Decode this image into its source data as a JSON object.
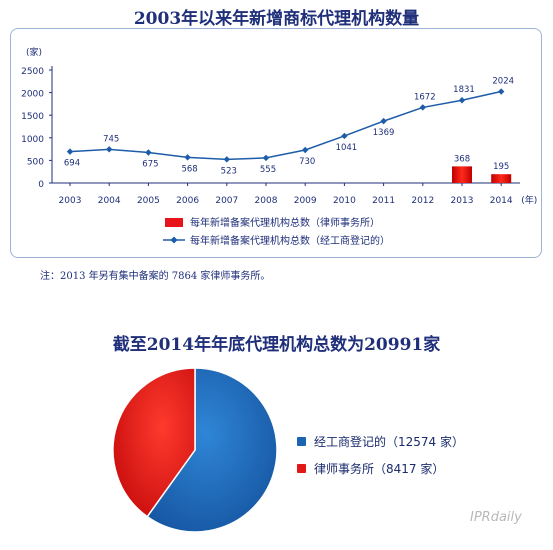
{
  "chart_data": [
    {
      "type": "bar+line",
      "title": "2003年以来年新增商标代理机构数量",
      "ylabel": "(家)",
      "xlabel": "(年)",
      "ylim": [
        0,
        2500
      ],
      "yticks": [
        "0",
        "500",
        "1000",
        "1500",
        "2000",
        "2500"
      ],
      "categories": [
        "2003",
        "2004",
        "2005",
        "2006",
        "2007",
        "2008",
        "2009",
        "2010",
        "2011",
        "2012",
        "2013",
        "2014"
      ],
      "series": [
        {
          "name": "每年新增备案代理机构总数（律师事务所）",
          "type": "bar",
          "color": "#e8141b",
          "values": [
            null,
            null,
            null,
            null,
            null,
            null,
            null,
            null,
            null,
            null,
            368,
            195
          ],
          "labels": [
            "",
            "",
            "",
            "",
            "",
            "",
            "",
            "",
            "",
            "",
            "368",
            "195"
          ]
        },
        {
          "name": "每年新增备案代理机构总数（经工商登记的）",
          "type": "line",
          "color": "#1d5ca8",
          "values": [
            694,
            745,
            675,
            568,
            523,
            555,
            730,
            1041,
            1369,
            1672,
            1831,
            2024
          ],
          "labels": [
            "694",
            "745",
            "675",
            "568",
            "523",
            "555",
            "730",
            "1041",
            "1369",
            "1672",
            "1831",
            "2024"
          ]
        }
      ],
      "grid": false,
      "legend": "bottom-center"
    },
    {
      "type": "pie",
      "title": "截至2014年年底代理机构总数为20991家",
      "slices": [
        {
          "label": "经工商登记的（12574 家）",
          "value": 12574,
          "color": "#1d63b3"
        },
        {
          "label": "律师事务所（8417 家）",
          "value": 8417,
          "color": "#e01818"
        }
      ],
      "legend": "right"
    }
  ],
  "note": "注：2013 年另有集中备案的 7864 家律师事务所。",
  "watermark": "IPRdaily"
}
